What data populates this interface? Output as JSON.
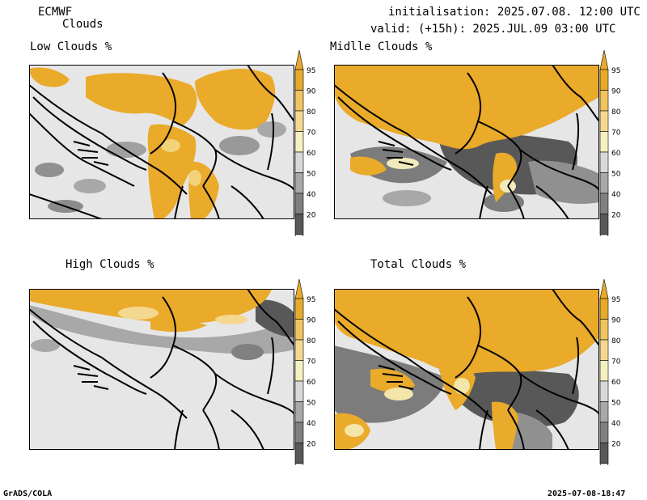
{
  "header": {
    "model": "ECMWF",
    "parameter": "Clouds",
    "initialisation": "initialisation: 2025.07.08. 12:00 UTC",
    "valid": "valid: (+15h): 2025.JUL.09 03:00 UTC"
  },
  "panels": [
    {
      "title": "Low Clouds %"
    },
    {
      "title": "Midlle Clouds %"
    },
    {
      "title": "High Clouds %"
    },
    {
      "title": "Total Clouds %"
    }
  ],
  "colorbar": {
    "labels": [
      "95",
      "90",
      "80",
      "70",
      "60",
      "50",
      "40",
      "20"
    ],
    "colors": [
      "#e8aa2c",
      "#f0c460",
      "#f4d890",
      "#f4f0c0",
      "#d8d8d8",
      "#a8a8a8",
      "#808080",
      "#585858"
    ],
    "arrow_low_color": "#ffffff"
  },
  "map": {
    "background_color": "#e6e6e6",
    "cloud_color": "#eaaa2a",
    "border_color": "#000000"
  },
  "footer": {
    "left": "GrADS/COLA",
    "right": "2025-07-08-18:47"
  }
}
